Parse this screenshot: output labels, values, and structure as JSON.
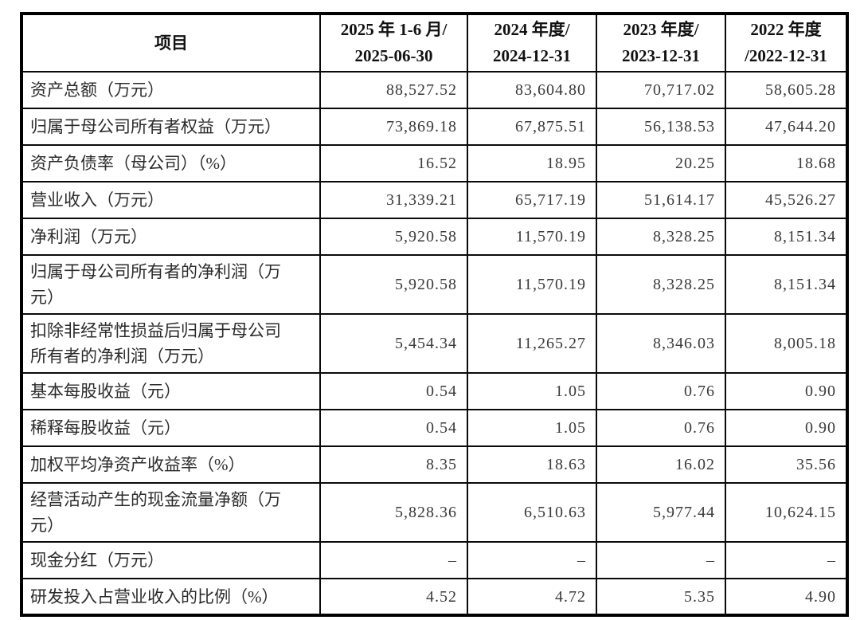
{
  "table": {
    "header": {
      "item_label": "项目",
      "periods": [
        {
          "line1": "2025 年 1-6 月/",
          "line2": "2025-06-30"
        },
        {
          "line1": "2024 年度/",
          "line2": "2024-12-31"
        },
        {
          "line1": "2023 年度/",
          "line2": "2023-12-31"
        },
        {
          "line1": "2022 年度",
          "line2": "/2022-12-31"
        }
      ]
    },
    "rows": [
      {
        "label": "资产总额（万元）",
        "values": [
          "88,527.52",
          "83,604.80",
          "70,717.02",
          "58,605.28"
        ]
      },
      {
        "label": "归属于母公司所有者权益（万元）",
        "values": [
          "73,869.18",
          "67,875.51",
          "56,138.53",
          "47,644.20"
        ]
      },
      {
        "label": "资产负债率（母公司）（%）",
        "values": [
          "16.52",
          "18.95",
          "20.25",
          "18.68"
        ]
      },
      {
        "label": "营业收入（万元）",
        "values": [
          "31,339.21",
          "65,717.19",
          "51,614.17",
          "45,526.27"
        ]
      },
      {
        "label": "净利润（万元）",
        "values": [
          "5,920.58",
          "11,570.19",
          "8,328.25",
          "8,151.34"
        ]
      },
      {
        "label": "归属于母公司所有者的净利润（万元）",
        "values": [
          "5,920.58",
          "11,570.19",
          "8,328.25",
          "8,151.34"
        ]
      },
      {
        "label": "扣除非经常性损益后归属于母公司所有者的净利润（万元）",
        "values": [
          "5,454.34",
          "11,265.27",
          "8,346.03",
          "8,005.18"
        ]
      },
      {
        "label": "基本每股收益（元）",
        "values": [
          "0.54",
          "1.05",
          "0.76",
          "0.90"
        ]
      },
      {
        "label": "稀释每股收益（元）",
        "values": [
          "0.54",
          "1.05",
          "0.76",
          "0.90"
        ]
      },
      {
        "label": "加权平均净资产收益率（%）",
        "values": [
          "8.35",
          "18.63",
          "16.02",
          "35.56"
        ]
      },
      {
        "label": "经营活动产生的现金流量净额（万元）",
        "values": [
          "5,828.36",
          "6,510.63",
          "5,977.44",
          "10,624.15"
        ]
      },
      {
        "label": "现金分红（万元）",
        "values": [
          "–",
          "–",
          "–",
          "–"
        ]
      },
      {
        "label": "研发投入占营业收入的比例（%）",
        "values": [
          "4.52",
          "4.72",
          "5.35",
          "4.90"
        ]
      }
    ]
  }
}
